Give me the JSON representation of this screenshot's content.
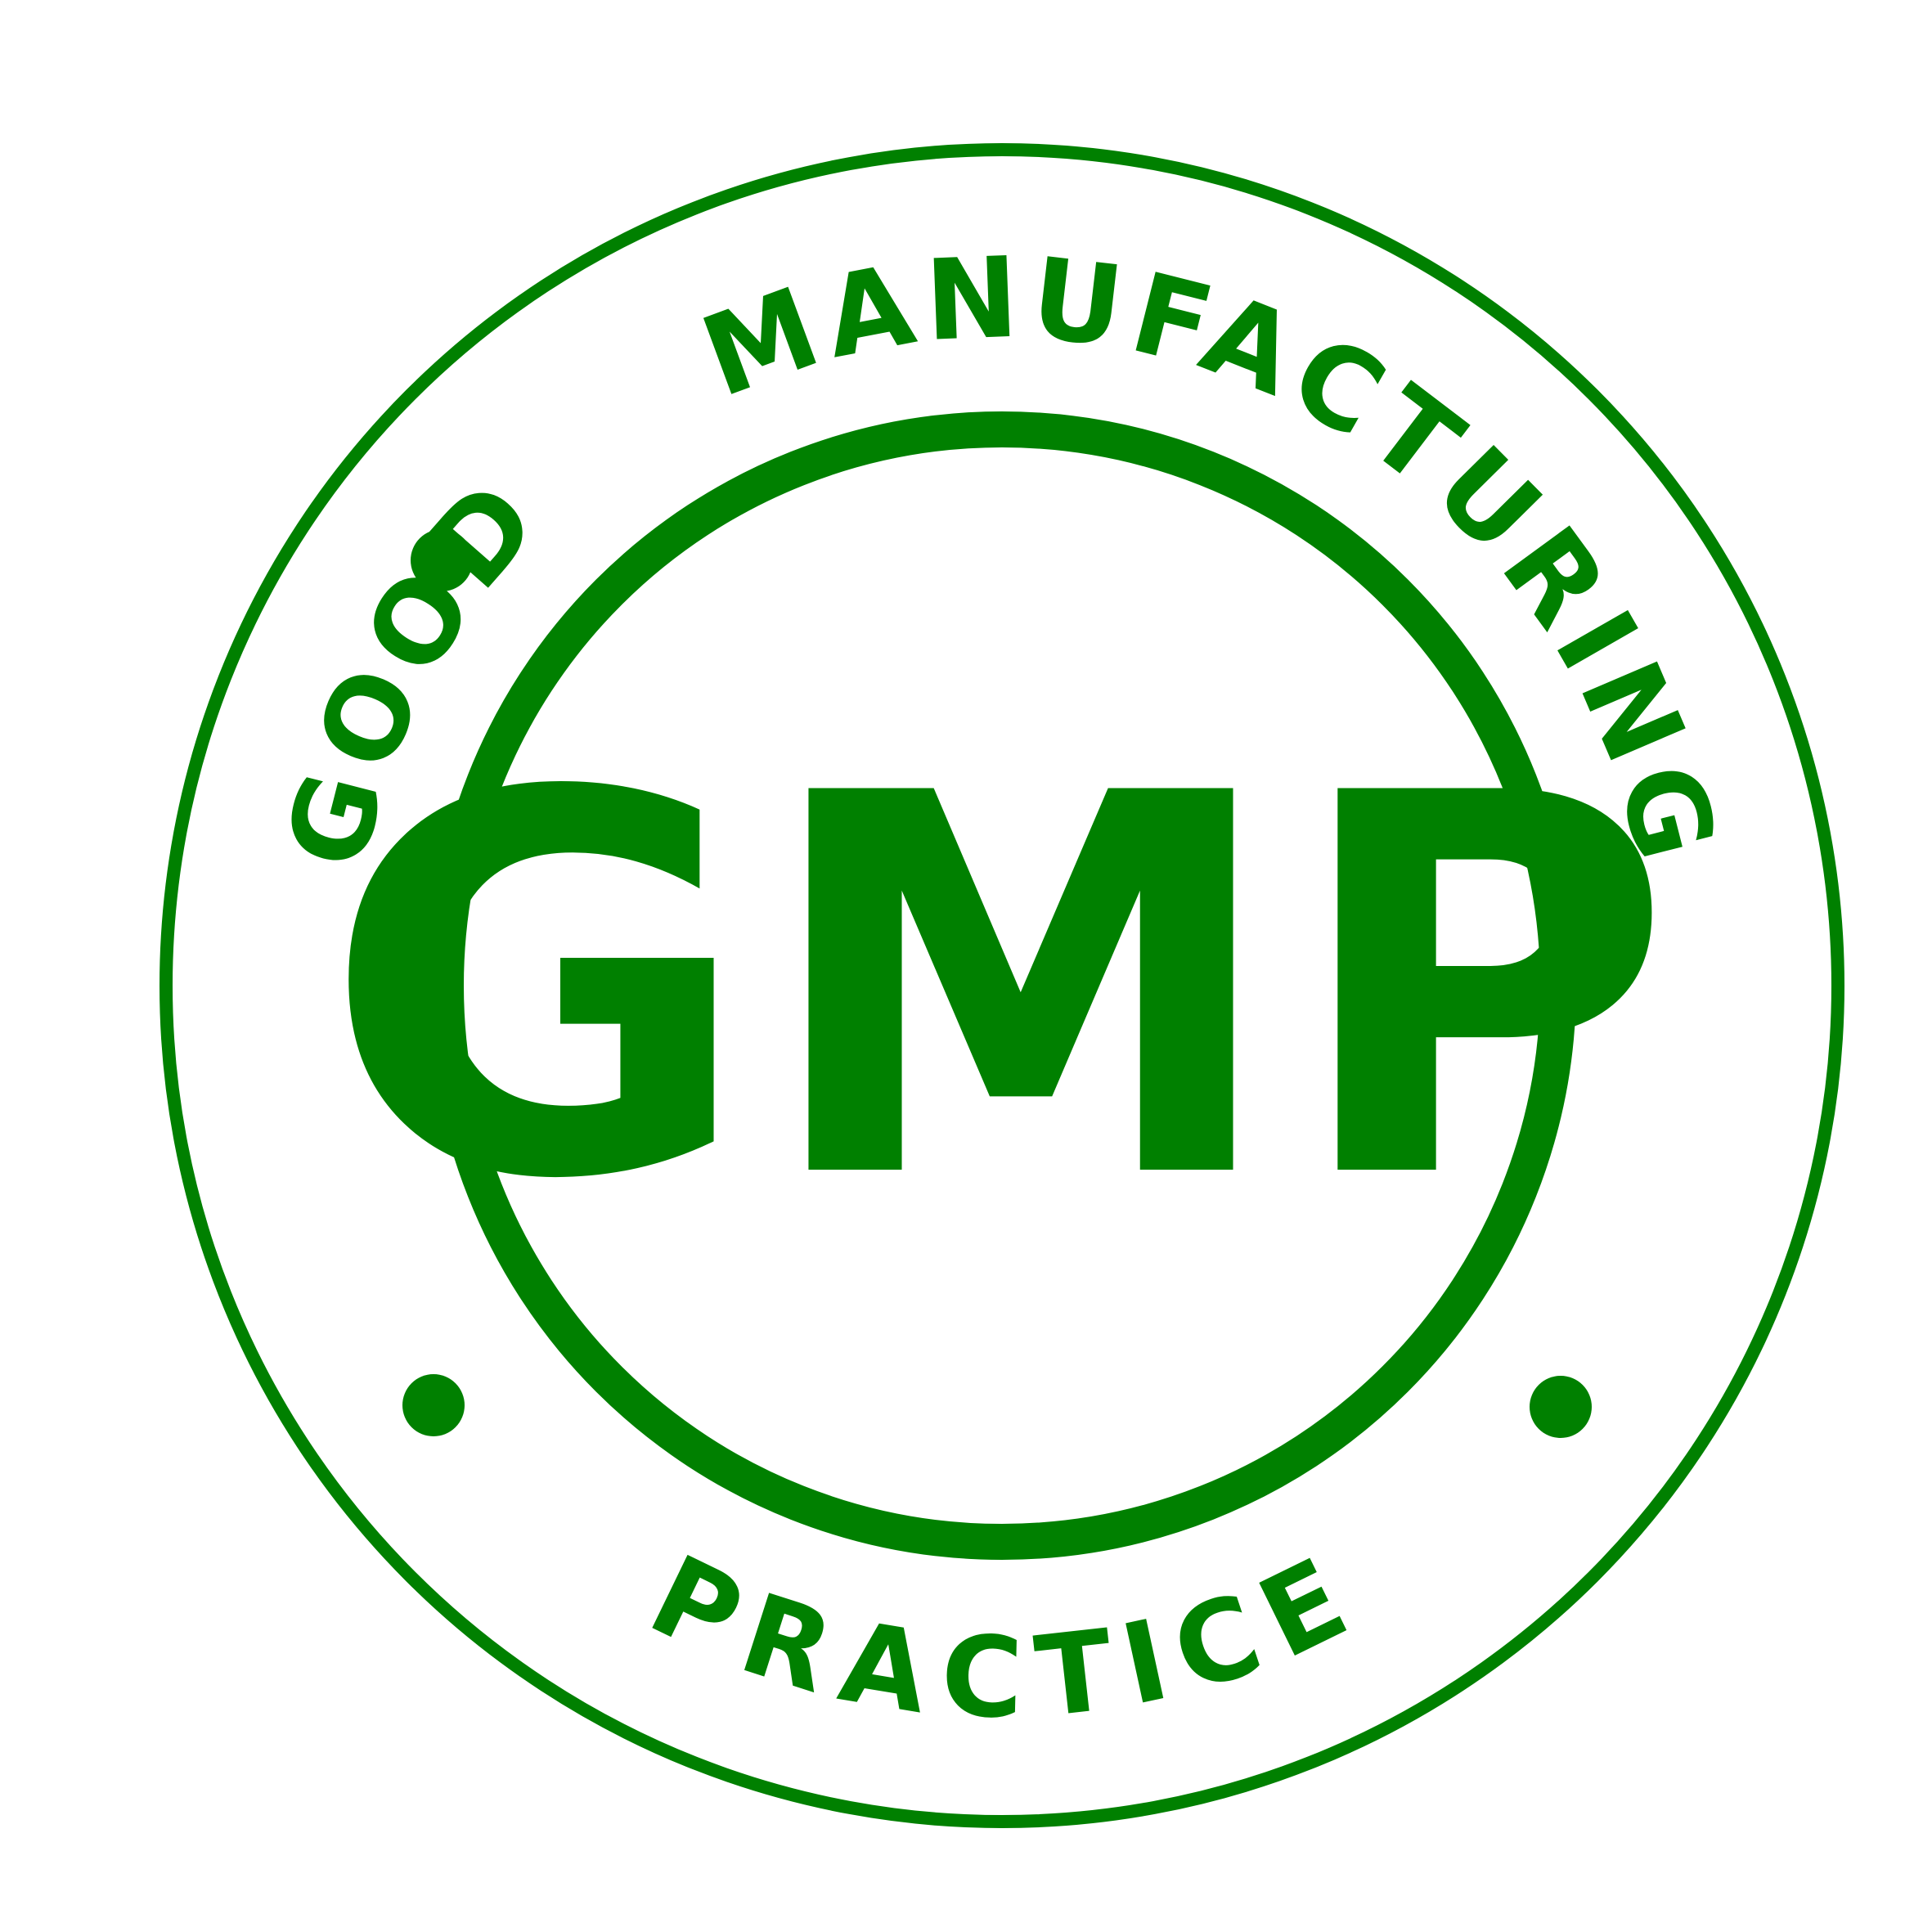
{
  "seal": {
    "center_label": "GMP",
    "top_arc_text": "GOOD · MANUFACTURING",
    "arc_words": {
      "left": "GOOD",
      "top": "MANUFACTURING",
      "bottom": "PRACTICE"
    },
    "color": "#008000",
    "background": "#ffffff"
  }
}
